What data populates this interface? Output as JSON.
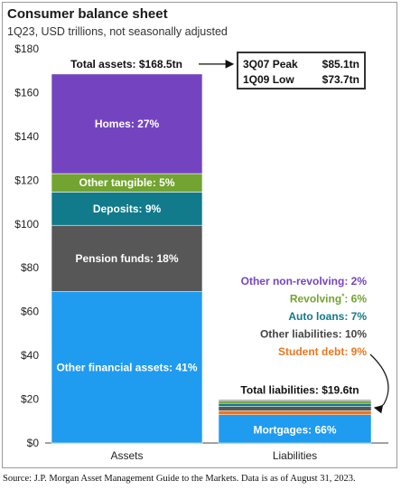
{
  "title": "Consumer balance sheet",
  "subtitle": "1Q23, USD trillions, not seasonally adjusted",
  "source": "Source: J.P. Morgan Asset Management Guide to the Markets.  Data is as of August 31, 2023.",
  "chart_data": {
    "type": "bar",
    "stacked": true,
    "categories": [
      "Assets",
      "Liabilities"
    ],
    "ylim": [
      0,
      180
    ],
    "yticks": [
      "$0",
      "$20",
      "$40",
      "$60",
      "$80",
      "$100",
      "$120",
      "$140",
      "$160",
      "$180"
    ],
    "ytick_values": [
      0,
      20,
      40,
      60,
      80,
      100,
      120,
      140,
      160,
      180
    ],
    "grid": false,
    "assets": {
      "total_label": "Total assets: $168.5tn",
      "total": 168.5,
      "segments": [
        {
          "label": "Other financial assets: 41%",
          "value": 69.1,
          "color": "#1f9bf0"
        },
        {
          "label": "Pension funds: 18%",
          "value": 30.3,
          "color": "#575757"
        },
        {
          "label": "Deposits: 9%",
          "value": 15.2,
          "color": "#117a8b"
        },
        {
          "label": "Other tangible: 5%",
          "value": 8.4,
          "color": "#73a330"
        },
        {
          "label": "Homes: 27%",
          "value": 45.5,
          "color": "#7444c0"
        }
      ]
    },
    "liabilities": {
      "total_label": "Total liabilities: $19.6tn",
      "total": 19.6,
      "segments": [
        {
          "label": "Mortgages: 66%",
          "value": 12.9,
          "color": "#1f9bf0"
        },
        {
          "label": "Student debt: 9%",
          "value": 1.8,
          "color": "#e87722"
        },
        {
          "label": "Other liabilities: 10%",
          "value": 2.0,
          "color": "#575757"
        },
        {
          "label": "Auto loans: 7%",
          "value": 1.4,
          "color": "#117a8b"
        },
        {
          "label": "Revolving",
          "value": 1.2,
          "color": "#73a330"
        },
        {
          "label": "Other non-revolving: 2%",
          "value": 0.4,
          "color": "#7444c0"
        }
      ],
      "legend_labels": [
        {
          "text": "Other non-revolving:  2%",
          "color": "#7444c0"
        },
        {
          "text": "Revolving",
          "sup": "*",
          "tail": ":  6%",
          "color": "#73a330"
        },
        {
          "text": "Auto loans: 7%",
          "color": "#117a8b"
        },
        {
          "text": "Other liabilities:  10%",
          "color": "#444444"
        },
        {
          "text": "Student debt:  9%",
          "color": "#e87722"
        }
      ]
    },
    "peak_box": [
      {
        "period": "3Q07 Peak",
        "value": "$85.1tn"
      },
      {
        "period": "1Q09 Low",
        "value": "$73.7tn"
      }
    ]
  }
}
